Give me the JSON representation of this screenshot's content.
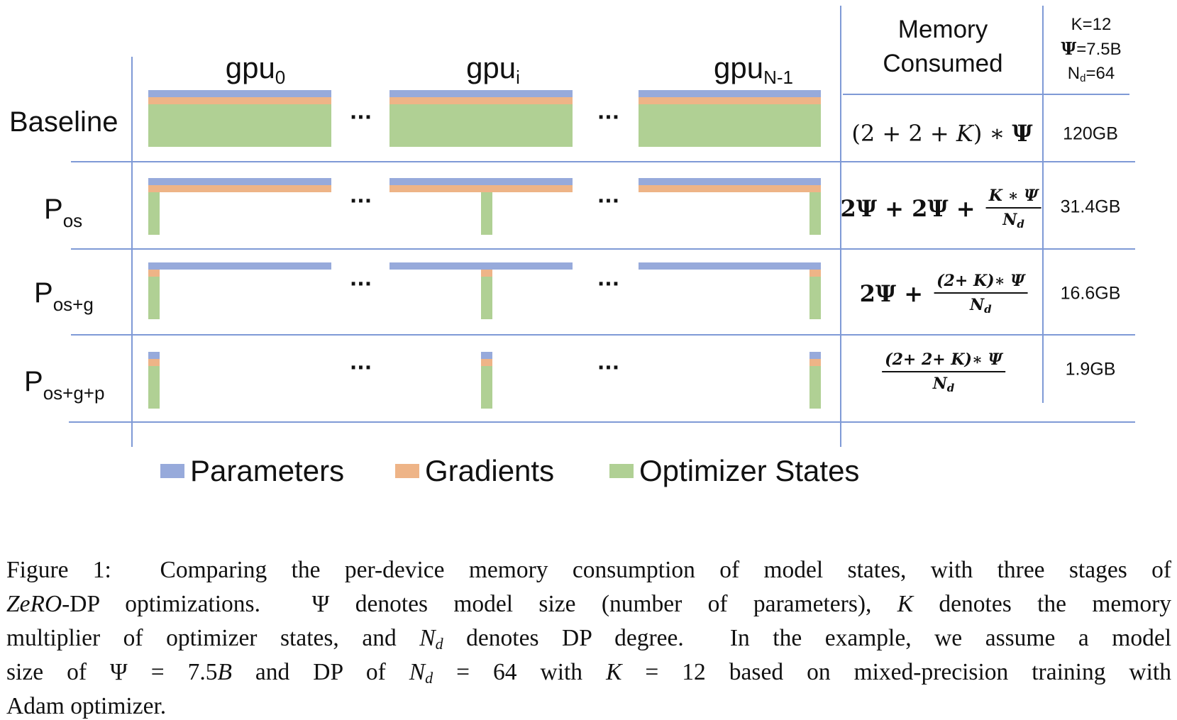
{
  "colors": {
    "parameters": "#97aadb",
    "gradients": "#eeb487",
    "optimizer_states": "#b0d094",
    "grid": "#7f9ad6"
  },
  "headers": {
    "gpu0": {
      "base": "gpu",
      "sub": "0"
    },
    "gpui": {
      "base": "gpu",
      "sub": "i"
    },
    "gpun": {
      "base": "gpu",
      "sub": "N-1"
    },
    "memory_consumed_line1": "Memory",
    "memory_consumed_line2": "Consumed",
    "params": {
      "k": "K=12",
      "psi": "Ψ",
      "psi_val": "=7.5B",
      "nd": "N",
      "nd_sub": "d",
      "nd_val": "=64"
    }
  },
  "ellipsis": "...",
  "rows": [
    {
      "label": "Baseline",
      "sub": "",
      "value": "120GB"
    },
    {
      "label": "P",
      "sub": "os",
      "value": "31.4GB"
    },
    {
      "label": "P",
      "sub": "os+g",
      "value": "16.6GB"
    },
    {
      "label": "P",
      "sub": "os+g+p",
      "value": "1.9GB"
    }
  ],
  "formulas": {
    "baseline": {
      "a": "(2 + 2 + ",
      "k": "K",
      "b": ") ∗ ",
      "psi": "Ψ"
    },
    "pos": {
      "a": "2Ψ + 2Ψ + ",
      "num": "K ∗ Ψ",
      "den": "N",
      "den_sub": "d"
    },
    "posg": {
      "a": "2Ψ + ",
      "num": "(2+ K)∗ Ψ",
      "den": "N",
      "den_sub": "d"
    },
    "posgp": {
      "num": "(2+ 2+ K)∗ Ψ",
      "den": "N",
      "den_sub": "d"
    }
  },
  "legend": [
    {
      "label": "Parameters",
      "color": "#97aadb"
    },
    {
      "label": "Gradients",
      "color": "#eeb487"
    },
    {
      "label": "Optimizer States",
      "color": "#b0d094"
    }
  ],
  "caption": [
    [
      {
        "t": "Figure 1:  Comparing the per-device memory consumption of model states, with three stages of"
      }
    ],
    [
      {
        "t": "ZeRO",
        "i": true
      },
      {
        "t": "-DP optimizations.  Ψ denotes model size (number of parameters), "
      },
      {
        "t": "K",
        "i": true
      },
      {
        "t": " denotes the memory"
      }
    ],
    [
      {
        "t": "multiplier of optimizer states, and "
      },
      {
        "t": "N",
        "i": true
      },
      {
        "t": "d",
        "sub": true,
        "i": true
      },
      {
        "t": " denotes DP degree.  In the example, we assume a model"
      }
    ],
    [
      {
        "t": "size of Ψ = 7.5"
      },
      {
        "t": "B",
        "i": true
      },
      {
        "t": " and DP of "
      },
      {
        "t": "N",
        "i": true
      },
      {
        "t": "d",
        "sub": true,
        "i": true
      },
      {
        "t": " = 64 with "
      },
      {
        "t": "K",
        "i": true
      },
      {
        "t": " = 12 based on mixed-precision training with"
      }
    ],
    [
      {
        "t": "Adam optimizer."
      }
    ]
  ]
}
